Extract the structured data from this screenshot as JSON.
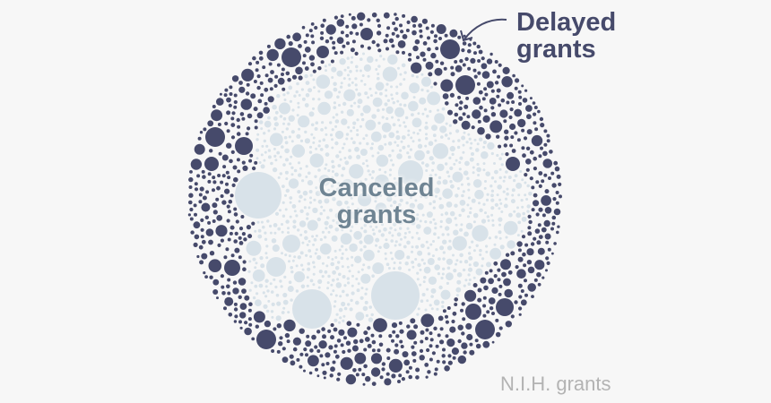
{
  "chart_data": {
    "type": "packed-bubble",
    "title": "",
    "groups": [
      {
        "name": "Delayed grants",
        "color": "#464a6b",
        "position": "outer ring"
      },
      {
        "name": "Canceled grants",
        "color": "#d8e2e9",
        "position": "center"
      }
    ],
    "caption": "N.I.H. grants",
    "label_colors": {
      "delayed": "#464a6b",
      "canceled": "#6f8493",
      "caption": "#b3b3b3"
    }
  }
}
